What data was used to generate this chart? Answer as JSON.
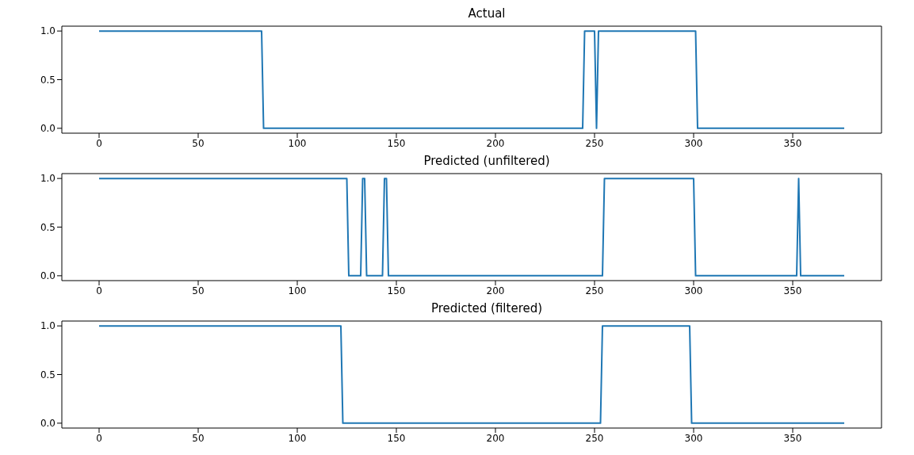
{
  "chart_data": [
    {
      "type": "line",
      "title": "Actual",
      "xlim": [
        -18.8,
        394.8
      ],
      "xticks": [
        0,
        50,
        100,
        150,
        200,
        250,
        300,
        350
      ],
      "ylim": [
        -0.05,
        1.05
      ],
      "yticks": [
        {
          "value": 0,
          "label": "0.0"
        },
        {
          "value": 0.5,
          "label": "0.5"
        },
        {
          "value": 1,
          "label": "1.0"
        }
      ],
      "grid": false,
      "marker": "none",
      "line_style": "solid",
      "series": [
        {
          "color": "#1f77b4",
          "x": [
            0,
            82,
            83,
            244,
            245,
            250,
            251,
            252,
            301,
            302,
            376
          ],
          "values": [
            1,
            1,
            0,
            0,
            1,
            1,
            0,
            1,
            1,
            0,
            0
          ]
        }
      ]
    },
    {
      "type": "line",
      "title": "Predicted (unfiltered)",
      "xlim": [
        -18.8,
        394.8
      ],
      "xticks": [
        0,
        50,
        100,
        150,
        200,
        250,
        300,
        350
      ],
      "ylim": [
        -0.05,
        1.05
      ],
      "yticks": [
        {
          "value": 0,
          "label": "0.0"
        },
        {
          "value": 0.5,
          "label": "0.5"
        },
        {
          "value": 1,
          "label": "1.0"
        }
      ],
      "grid": false,
      "marker": "none",
      "line_style": "solid",
      "series": [
        {
          "color": "#1f77b4",
          "x": [
            0,
            125,
            126,
            132,
            133,
            134,
            135,
            143,
            144,
            145,
            146,
            254,
            255,
            300,
            301,
            352,
            353,
            354,
            376
          ],
          "values": [
            1,
            1,
            0,
            0,
            1,
            1,
            0,
            0,
            1,
            1,
            0,
            0,
            1,
            1,
            0,
            0,
            1,
            0,
            0
          ]
        }
      ]
    },
    {
      "type": "line",
      "title": "Predicted (filtered)",
      "xlim": [
        -18.8,
        394.8
      ],
      "xticks": [
        0,
        50,
        100,
        150,
        200,
        250,
        300,
        350
      ],
      "ylim": [
        -0.05,
        1.05
      ],
      "yticks": [
        {
          "value": 0,
          "label": "0.0"
        },
        {
          "value": 0.5,
          "label": "0.5"
        },
        {
          "value": 1,
          "label": "1.0"
        }
      ],
      "grid": false,
      "marker": "none",
      "line_style": "solid",
      "series": [
        {
          "color": "#1f77b4",
          "x": [
            0,
            122,
            123,
            253,
            254,
            298,
            299,
            376
          ],
          "values": [
            1,
            1,
            0,
            0,
            1,
            1,
            0,
            0
          ]
        }
      ]
    }
  ]
}
